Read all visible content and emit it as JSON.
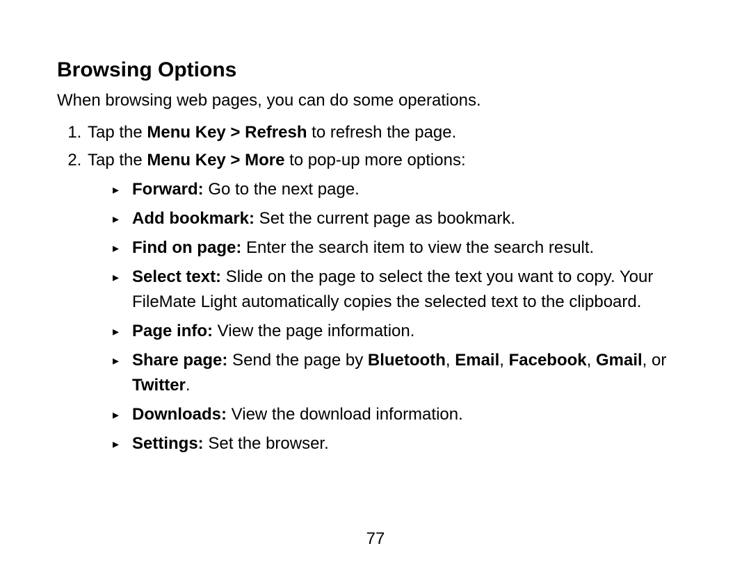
{
  "heading": "Browsing Options",
  "intro": "When browsing web pages, you can do some operations.",
  "item1": {
    "pre": "Tap the ",
    "bold": "Menu Key > Refresh",
    "post": " to refresh the page."
  },
  "item2": {
    "pre": "Tap the ",
    "bold": "Menu Key > More",
    "post": " to pop-up more options:"
  },
  "bullets": {
    "forward": {
      "label": "Forward:",
      "text": " Go to the next page."
    },
    "add_bookmark": {
      "label": "Add bookmark:",
      "text": " Set the current page as bookmark."
    },
    "find_on_page": {
      "label": "Find on page:",
      "text": " Enter the search item to view the search result."
    },
    "select_text": {
      "label": "Select text:",
      "text": " Slide on the page to select the text you want to copy. Your FileMate Light automatically copies the selected text to the clipboard."
    },
    "page_info": {
      "label": "Page info:",
      "text": " View the page information."
    },
    "share_page": {
      "label": "Share page:",
      "text_pre": " Send the page by ",
      "b1": "Bluetooth",
      "c1": ", ",
      "b2": "Email",
      "c2": ", ",
      "b3": "Facebook",
      "c3": ", ",
      "b4": "Gmail",
      "c4": ", or ",
      "b5": "Twitter",
      "c5": "."
    },
    "downloads": {
      "label": "Downloads:",
      "text": " View the download information."
    },
    "settings": {
      "label": "Settings:",
      "text": " Set the browser."
    }
  },
  "page_number": "77",
  "colors": {
    "text": "#000000",
    "background": "#ffffff"
  },
  "typography": {
    "heading_pt": 30,
    "body_pt": 24,
    "family": "Arial"
  }
}
